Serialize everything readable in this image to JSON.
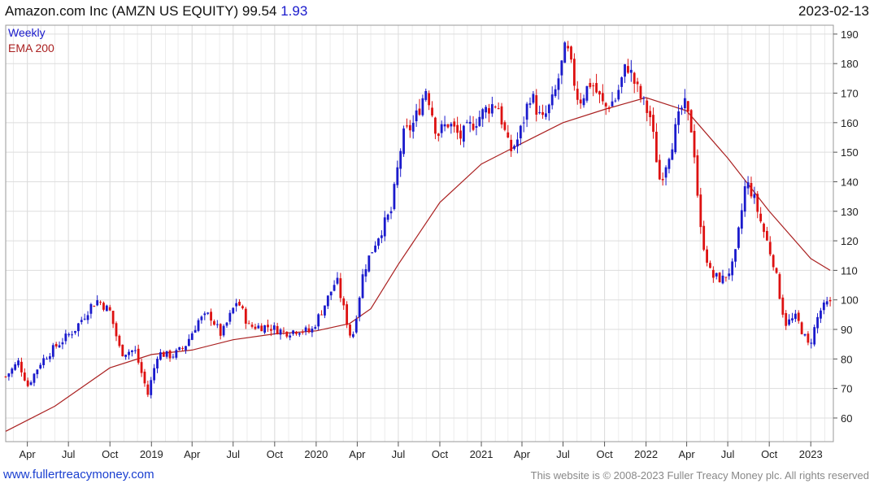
{
  "header": {
    "title": "Amazon.com Inc (AMZN US EQUITY)",
    "price": "99.54",
    "change": "1.93",
    "date": "2023-02-13"
  },
  "footer": {
    "site": "www.fullertreacymoney.com",
    "copyright": "This website is © 2008-2023 Fuller Treacy Money plc. All rights reserved"
  },
  "colors": {
    "up": "#1a1acc",
    "down": "#dd1111",
    "ema": "#aa2020",
    "grid": "#dddddd",
    "axis": "#555555"
  },
  "chart_data": {
    "type": "candlestick",
    "legend": [
      "Weekly",
      "EMA 200"
    ],
    "legend_placement": "top-left",
    "ylim": [
      52,
      193
    ],
    "yticks": [
      60,
      70,
      80,
      90,
      100,
      110,
      120,
      130,
      140,
      150,
      160,
      170,
      180,
      190
    ],
    "x_range": [
      "2018-02-12",
      "2023-02-20"
    ],
    "xticks": [
      {
        "date": "2018-04-01",
        "label": "Apr"
      },
      {
        "date": "2018-07-01",
        "label": "Jul"
      },
      {
        "date": "2018-10-01",
        "label": "Oct"
      },
      {
        "date": "2019-01-01",
        "label": "2019"
      },
      {
        "date": "2019-04-01",
        "label": "Apr"
      },
      {
        "date": "2019-07-01",
        "label": "Jul"
      },
      {
        "date": "2019-10-01",
        "label": "Oct"
      },
      {
        "date": "2020-01-01",
        "label": "2020"
      },
      {
        "date": "2020-04-01",
        "label": "Apr"
      },
      {
        "date": "2020-07-01",
        "label": "Jul"
      },
      {
        "date": "2020-10-01",
        "label": "Oct"
      },
      {
        "date": "2021-01-01",
        "label": "2021"
      },
      {
        "date": "2021-04-01",
        "label": "Apr"
      },
      {
        "date": "2021-07-01",
        "label": "Jul"
      },
      {
        "date": "2021-10-01",
        "label": "Oct"
      },
      {
        "date": "2022-01-01",
        "label": "2022"
      },
      {
        "date": "2022-04-01",
        "label": "Apr"
      },
      {
        "date": "2022-07-01",
        "label": "Jul"
      },
      {
        "date": "2022-10-01",
        "label": "Oct"
      },
      {
        "date": "2023-01-01",
        "label": "2023"
      }
    ],
    "closes": [
      {
        "date": "2018-02-12",
        "close": 74
      },
      {
        "date": "2018-03-12",
        "close": 79
      },
      {
        "date": "2018-04-02",
        "close": 71
      },
      {
        "date": "2018-05-01",
        "close": 79
      },
      {
        "date": "2018-06-01",
        "close": 84
      },
      {
        "date": "2018-07-15",
        "close": 90
      },
      {
        "date": "2018-08-20",
        "close": 98
      },
      {
        "date": "2018-09-05",
        "close": 100
      },
      {
        "date": "2018-10-01",
        "close": 96
      },
      {
        "date": "2018-10-25",
        "close": 82
      },
      {
        "date": "2018-11-25",
        "close": 83
      },
      {
        "date": "2018-12-24",
        "close": 68
      },
      {
        "date": "2019-01-15",
        "close": 82
      },
      {
        "date": "2019-02-15",
        "close": 81
      },
      {
        "date": "2019-03-15",
        "close": 84
      },
      {
        "date": "2019-04-15",
        "close": 93
      },
      {
        "date": "2019-05-10",
        "close": 95
      },
      {
        "date": "2019-06-05",
        "close": 88
      },
      {
        "date": "2019-07-10",
        "close": 100
      },
      {
        "date": "2019-08-05",
        "close": 91
      },
      {
        "date": "2019-09-15",
        "close": 91
      },
      {
        "date": "2019-10-25",
        "close": 89
      },
      {
        "date": "2019-11-25",
        "close": 90
      },
      {
        "date": "2019-12-20",
        "close": 89
      },
      {
        "date": "2020-01-25",
        "close": 100
      },
      {
        "date": "2020-02-15",
        "close": 107
      },
      {
        "date": "2020-03-05",
        "close": 95
      },
      {
        "date": "2020-03-20",
        "close": 86
      },
      {
        "date": "2020-04-15",
        "close": 110
      },
      {
        "date": "2020-05-15",
        "close": 121
      },
      {
        "date": "2020-06-15",
        "close": 130
      },
      {
        "date": "2020-07-10",
        "close": 155
      },
      {
        "date": "2020-08-05",
        "close": 160
      },
      {
        "date": "2020-09-01",
        "close": 172
      },
      {
        "date": "2020-09-25",
        "close": 156
      },
      {
        "date": "2020-10-20",
        "close": 160
      },
      {
        "date": "2020-11-15",
        "close": 155
      },
      {
        "date": "2020-12-15",
        "close": 160
      },
      {
        "date": "2021-01-15",
        "close": 165
      },
      {
        "date": "2021-02-05",
        "close": 167
      },
      {
        "date": "2021-03-05",
        "close": 150
      },
      {
        "date": "2021-03-25",
        "close": 155
      },
      {
        "date": "2021-04-20",
        "close": 170
      },
      {
        "date": "2021-05-15",
        "close": 160
      },
      {
        "date": "2021-06-10",
        "close": 168
      },
      {
        "date": "2021-07-08",
        "close": 186
      },
      {
        "date": "2021-08-05",
        "close": 167
      },
      {
        "date": "2021-09-01",
        "close": 174
      },
      {
        "date": "2021-10-01",
        "close": 165
      },
      {
        "date": "2021-10-25",
        "close": 168
      },
      {
        "date": "2021-11-20",
        "close": 180
      },
      {
        "date": "2021-12-15",
        "close": 170
      },
      {
        "date": "2022-01-10",
        "close": 162
      },
      {
        "date": "2022-02-01",
        "close": 140
      },
      {
        "date": "2022-02-25",
        "close": 152
      },
      {
        "date": "2022-03-25",
        "close": 167
      },
      {
        "date": "2022-04-15",
        "close": 156
      },
      {
        "date": "2022-05-01",
        "close": 124
      },
      {
        "date": "2022-05-25",
        "close": 108
      },
      {
        "date": "2022-06-20",
        "close": 107
      },
      {
        "date": "2022-07-15",
        "close": 112
      },
      {
        "date": "2022-08-10",
        "close": 140
      },
      {
        "date": "2022-08-25",
        "close": 136
      },
      {
        "date": "2022-09-15",
        "close": 125
      },
      {
        "date": "2022-10-10",
        "close": 113
      },
      {
        "date": "2022-11-05",
        "close": 92
      },
      {
        "date": "2022-11-30",
        "close": 94
      },
      {
        "date": "2022-12-28",
        "close": 84
      },
      {
        "date": "2023-01-20",
        "close": 96
      },
      {
        "date": "2023-02-13",
        "close": 99.54
      }
    ],
    "ema": [
      {
        "date": "2018-02-12",
        "value": 55.5
      },
      {
        "date": "2018-06-01",
        "value": 64
      },
      {
        "date": "2018-10-01",
        "value": 77
      },
      {
        "date": "2019-01-01",
        "value": 81.5
      },
      {
        "date": "2019-04-01",
        "value": 83
      },
      {
        "date": "2019-07-01",
        "value": 86.5
      },
      {
        "date": "2019-10-01",
        "value": 88.5
      },
      {
        "date": "2020-01-01",
        "value": 89.5
      },
      {
        "date": "2020-03-15",
        "value": 92
      },
      {
        "date": "2020-05-01",
        "value": 97
      },
      {
        "date": "2020-07-01",
        "value": 112
      },
      {
        "date": "2020-10-01",
        "value": 133
      },
      {
        "date": "2021-01-01",
        "value": 146
      },
      {
        "date": "2021-04-01",
        "value": 153
      },
      {
        "date": "2021-07-01",
        "value": 160
      },
      {
        "date": "2021-10-01",
        "value": 164.5
      },
      {
        "date": "2022-01-01",
        "value": 168.5
      },
      {
        "date": "2022-04-01",
        "value": 164
      },
      {
        "date": "2022-07-01",
        "value": 148
      },
      {
        "date": "2022-10-01",
        "value": 130
      },
      {
        "date": "2023-01-01",
        "value": 114
      },
      {
        "date": "2023-02-13",
        "value": 110
      }
    ]
  }
}
